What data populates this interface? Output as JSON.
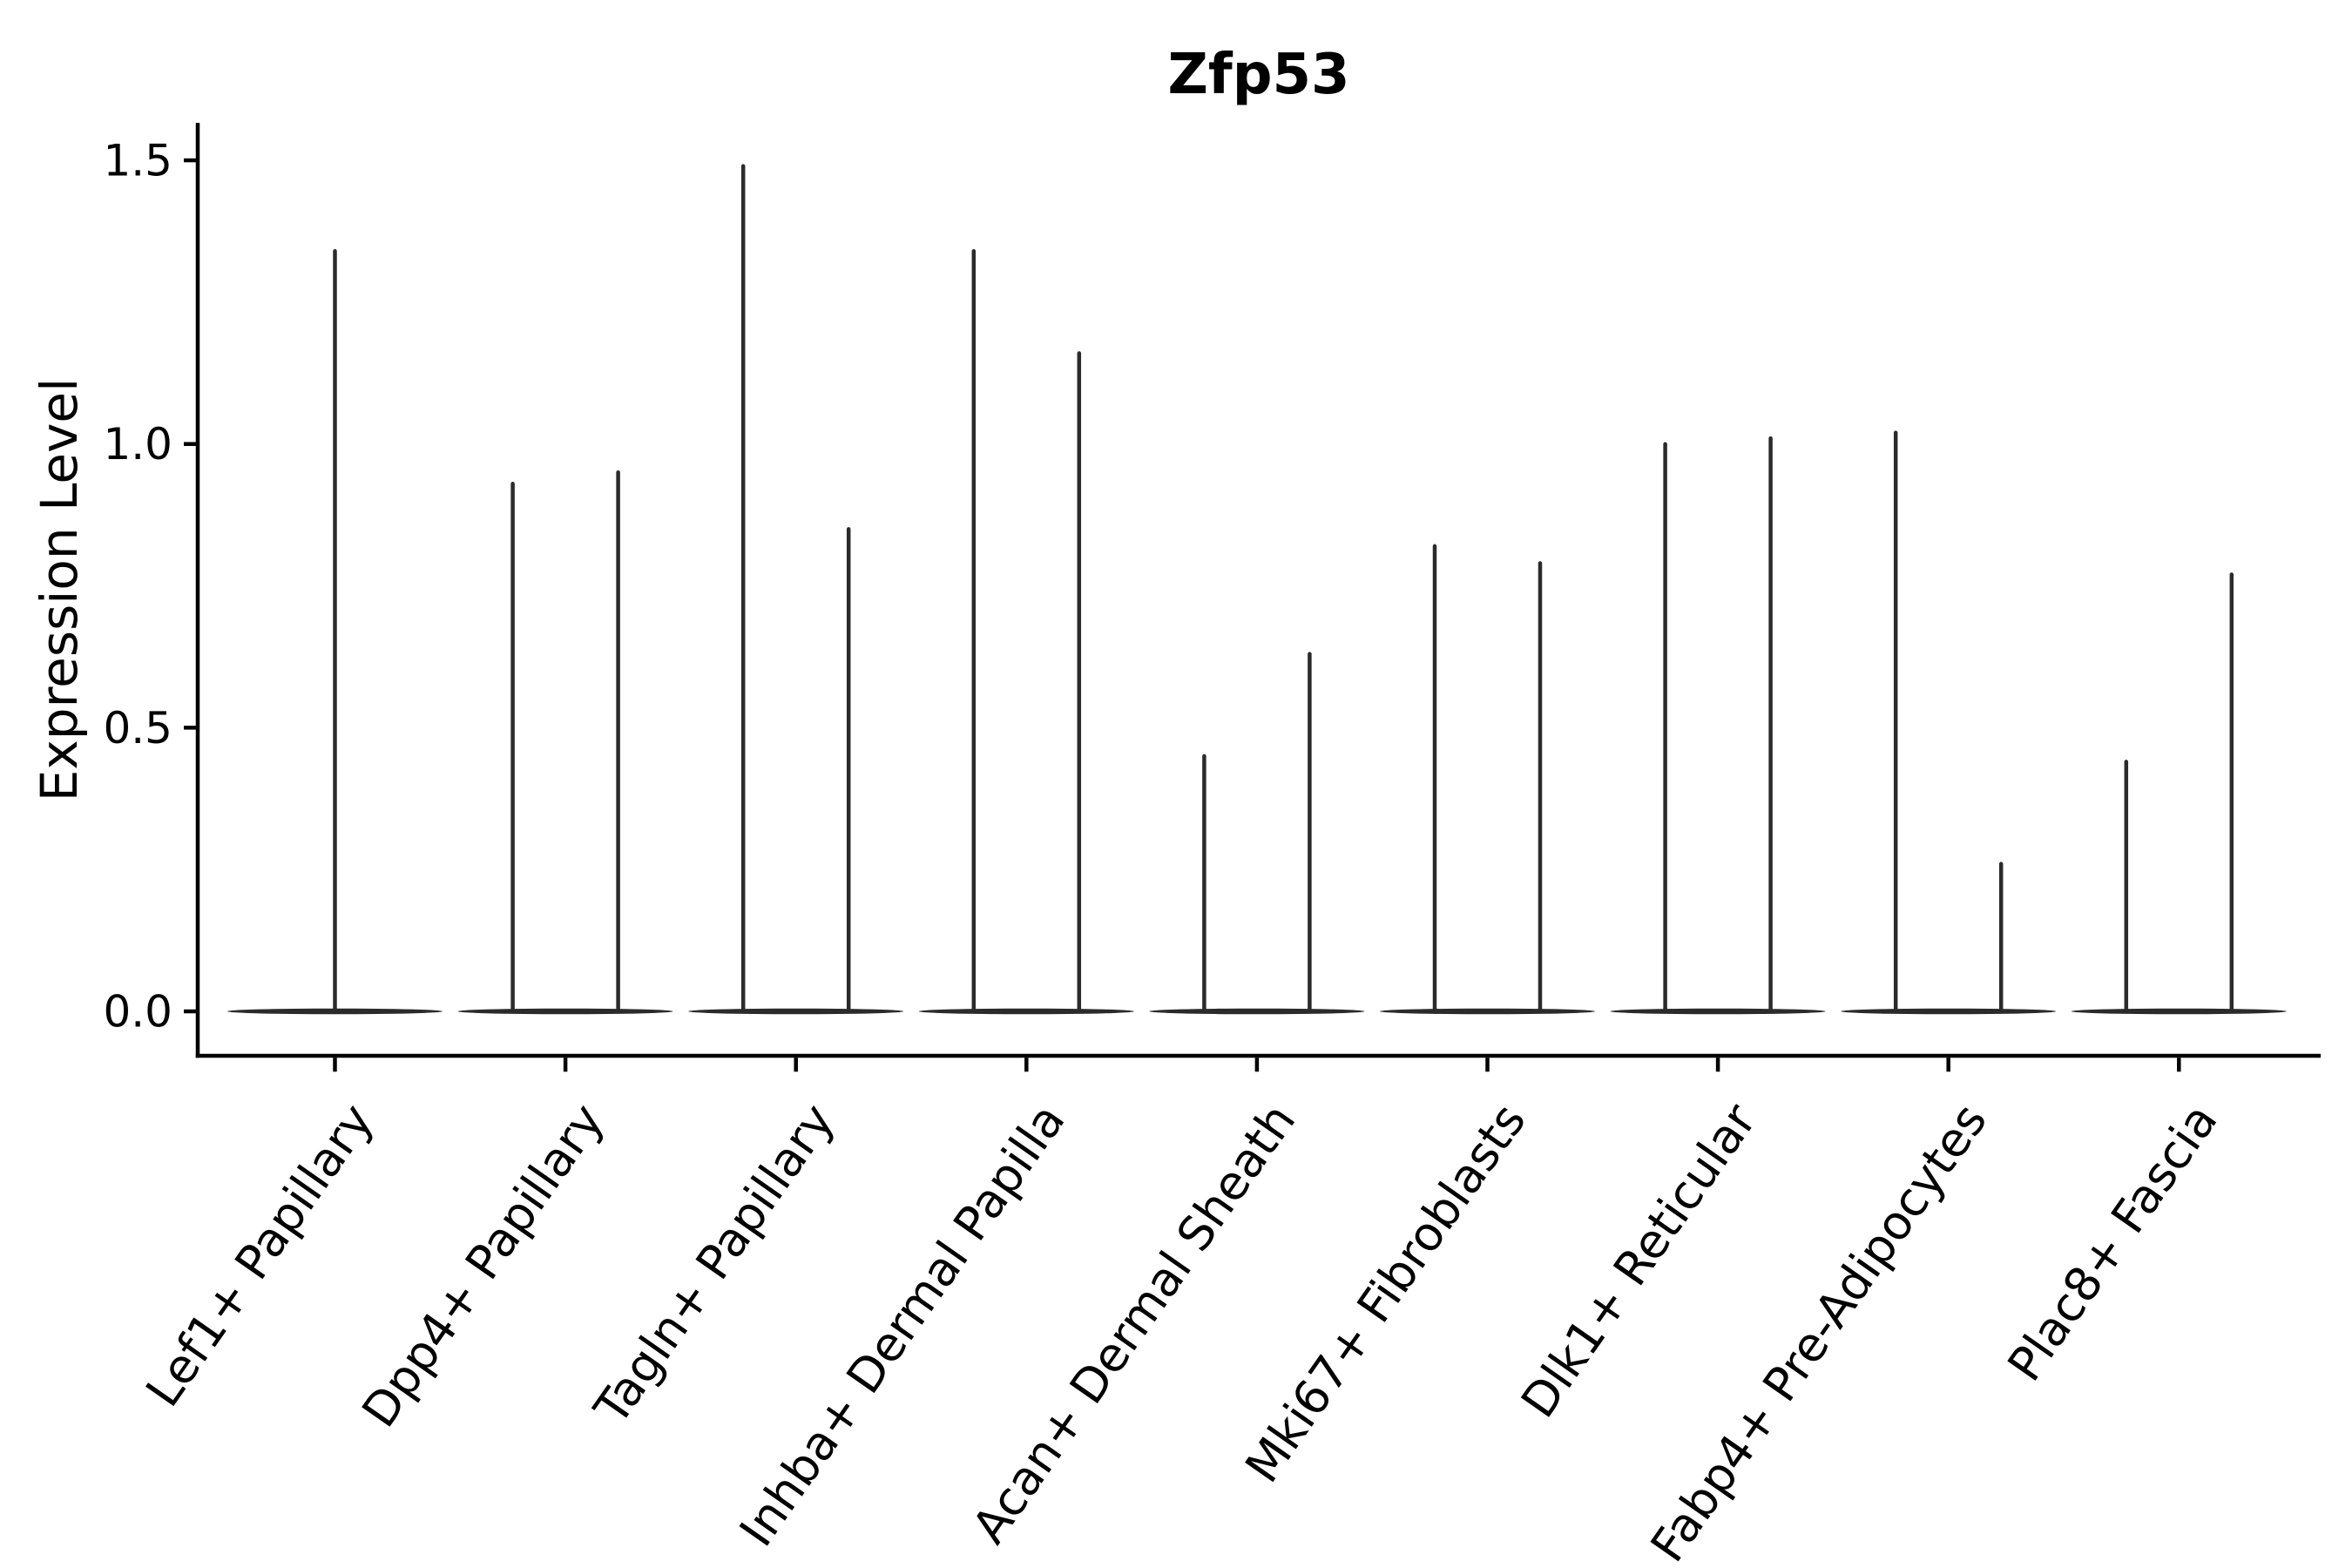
{
  "title": "Zfp53",
  "colors": {
    "background": "#ffffff",
    "axis": "#000000",
    "text": "#000000",
    "violin": "#2b2b2b"
  },
  "chart_data": {
    "type": "violin",
    "title": "Zfp53",
    "xlabel": "",
    "ylabel": "Expression Level",
    "ylim": [
      -0.08,
      1.57
    ],
    "grid": false,
    "legend": "none",
    "yticks": [
      0.0,
      0.5,
      1.0,
      1.5
    ],
    "ytick_labels": [
      "0.0",
      "0.5",
      "1.0",
      "1.5"
    ],
    "categories": [
      "Lef1+ Papillary",
      "Dpp4+ Papillary",
      "Tagln+ Papillary",
      "Inhba+ Dermal Papilla",
      "Acan+ Dermal Sheath",
      "Mki67+ Fibroblasts",
      "Dlk1+ Reticular",
      "Fabp4+ Pre-Adipocytes",
      "Plac8+ Fascia"
    ],
    "violins": [
      {
        "category": "Lef1+ Papillary",
        "spike_maxima": [
          1.34
        ]
      },
      {
        "category": "Dpp4+ Papillary",
        "spike_maxima": [
          0.93,
          0.95
        ]
      },
      {
        "category": "Tagln+ Papillary",
        "spike_maxima": [
          1.49,
          0.85
        ]
      },
      {
        "category": "Inhba+ Dermal Papilla",
        "spike_maxima": [
          1.34,
          1.16
        ]
      },
      {
        "category": "Acan+ Dermal Sheath",
        "spike_maxima": [
          0.45,
          0.63
        ]
      },
      {
        "category": "Mki67+ Fibroblasts",
        "spike_maxima": [
          0.82,
          0.79
        ]
      },
      {
        "category": "Dlk1+ Reticular",
        "spike_maxima": [
          1.0,
          1.01
        ]
      },
      {
        "category": "Fabp4+ Pre-Adipocytes",
        "spike_maxima": [
          1.02,
          0.26
        ]
      },
      {
        "category": "Plac8+ Fascia",
        "spike_maxima": [
          0.44,
          0.77
        ]
      }
    ],
    "note": "Zero-inflated expression distributions: each violin renders as a wide flat base at 0 with thin spike(s) up to the maximum expression value"
  }
}
